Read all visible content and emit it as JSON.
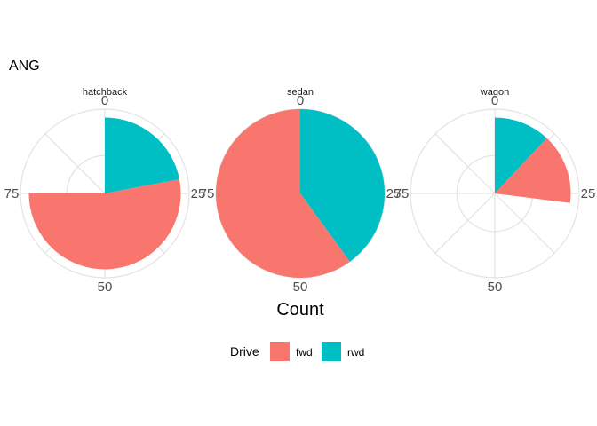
{
  "chart_data": {
    "type": "pie",
    "coord": "polar",
    "title": "ANG",
    "xlabel": "Count",
    "ylabel": "",
    "theta_range": [
      0,
      100
    ],
    "theta_ticks": [
      "0",
      "25",
      "50",
      "75"
    ],
    "legend": {
      "title": "Drive",
      "position": "bottom",
      "entries": [
        {
          "name": "fwd",
          "color": "#F8766D"
        },
        {
          "name": "rwd",
          "color": "#00BFC4"
        }
      ]
    },
    "facets": [
      {
        "label": "hatchback",
        "radius_fraction": 0.9,
        "slices": [
          {
            "drive": "rwd",
            "value": 22
          },
          {
            "drive": "fwd",
            "value": 53
          }
        ]
      },
      {
        "label": "sedan",
        "radius_fraction": 1.0,
        "slices": [
          {
            "drive": "rwd",
            "value": 40
          },
          {
            "drive": "fwd",
            "value": 60
          }
        ]
      },
      {
        "label": "wagon",
        "radius_fraction": 0.9,
        "slices": [
          {
            "drive": "rwd",
            "value": 12
          },
          {
            "drive": "fwd",
            "value": 15
          }
        ]
      }
    ],
    "grid": true
  }
}
